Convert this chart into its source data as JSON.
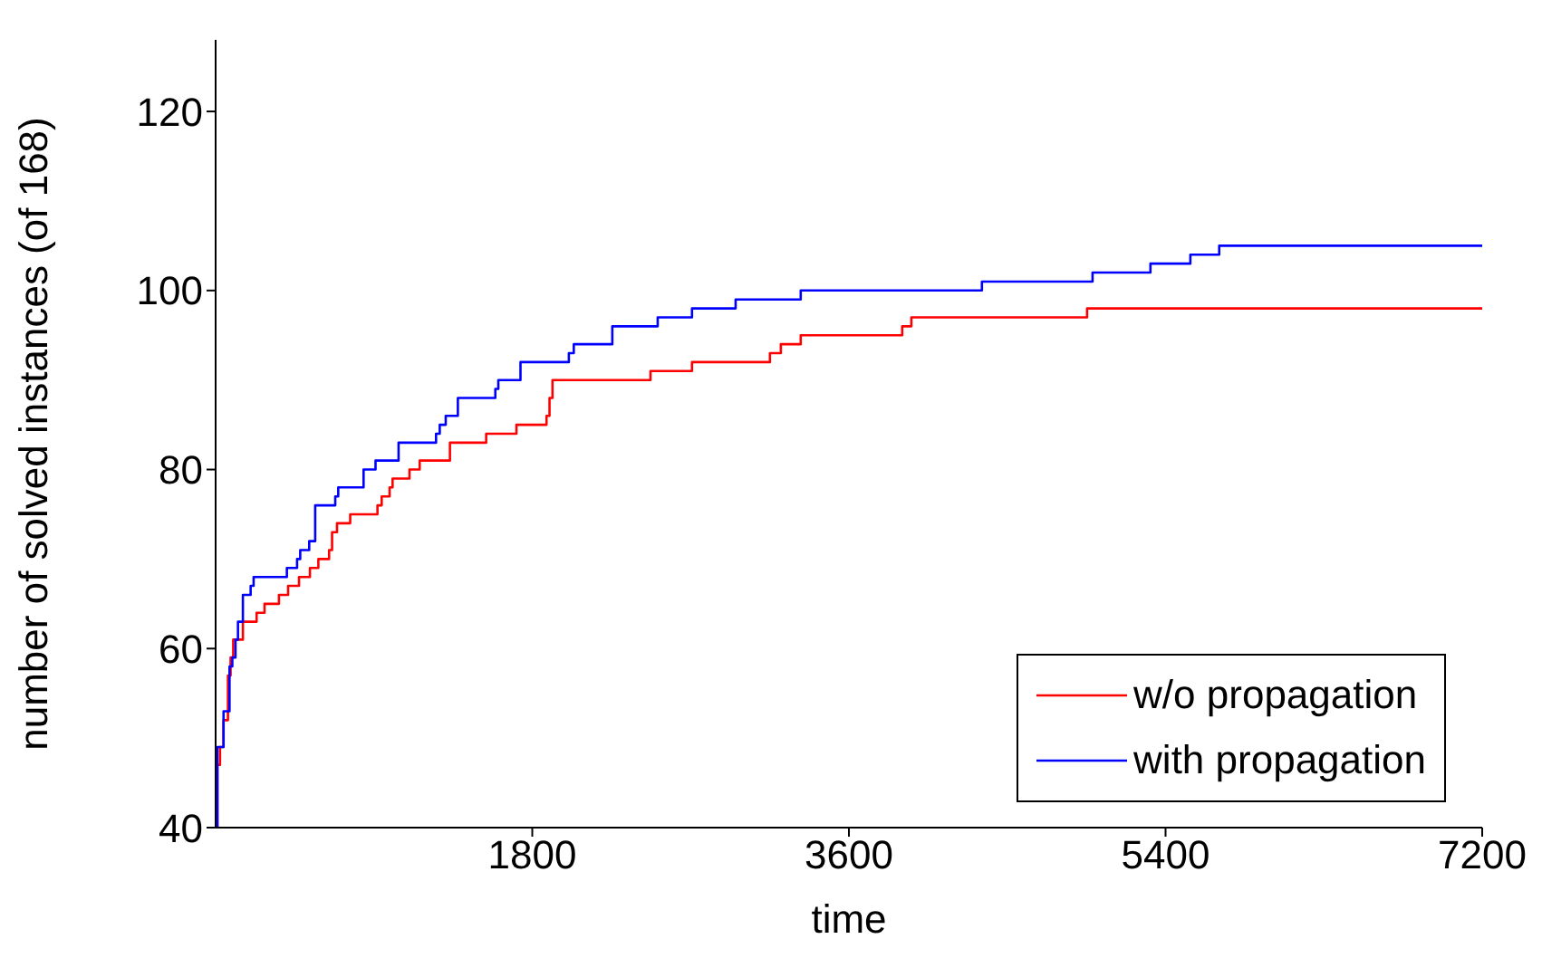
{
  "chart_data": {
    "type": "step",
    "xlabel": "time",
    "ylabel": "number of solved instances (of 168)",
    "xlim": [
      0,
      7200
    ],
    "xticks": [
      1800,
      3600,
      5400,
      7200
    ],
    "ylim": [
      40,
      128
    ],
    "yticks": [
      40,
      60,
      80,
      100,
      120
    ],
    "grid": false,
    "legend": "bottom right",
    "marker": "none",
    "line_style": "solid",
    "series": [
      {
        "name": "w/o propagation",
        "color": "#ff0000",
        "x": [
          0,
          10,
          25,
          45,
          70,
          85,
          100,
          155,
          233,
          278,
          360,
          412,
          474,
          536,
          584,
          645,
          662,
          690,
          765,
          920,
          944,
          989,
          1006,
          1102,
          1160,
          1332,
          1538,
          1710,
          1881,
          1898,
          1915,
          2472,
          2708,
          3151,
          3213,
          3326,
          3903,
          3955,
          4954,
          7200
        ],
        "values": [
          40,
          47,
          49,
          52,
          57,
          59,
          61,
          63,
          64,
          65,
          66,
          67,
          68,
          69,
          70,
          71,
          73,
          74,
          75,
          76,
          77,
          78,
          79,
          80,
          81,
          83,
          84,
          85,
          86,
          88,
          90,
          91,
          92,
          93,
          94,
          95,
          96,
          97,
          98,
          98
        ]
      },
      {
        "name": "with propagation",
        "color": "#0000ff",
        "x": [
          0,
          10,
          45,
          79,
          95,
          113,
          127,
          155,
          199,
          216,
          405,
          463,
          481,
          532,
          566,
          680,
          697,
          841,
          909,
          1040,
          1253,
          1274,
          1308,
          1377,
          1590,
          1607,
          1733,
          2008,
          2036,
          2255,
          2513,
          2708,
          2956,
          3326,
          4356,
          4985,
          5314,
          5541,
          5705,
          7200
        ],
        "values": [
          40,
          49,
          53,
          58,
          59,
          61,
          63,
          66,
          67,
          68,
          69,
          70,
          71,
          72,
          76,
          77,
          78,
          80,
          81,
          83,
          84,
          85,
          86,
          88,
          89,
          90,
          92,
          93,
          94,
          96,
          97,
          98,
          99,
          100,
          101,
          102,
          103,
          104,
          105,
          105
        ]
      }
    ]
  }
}
